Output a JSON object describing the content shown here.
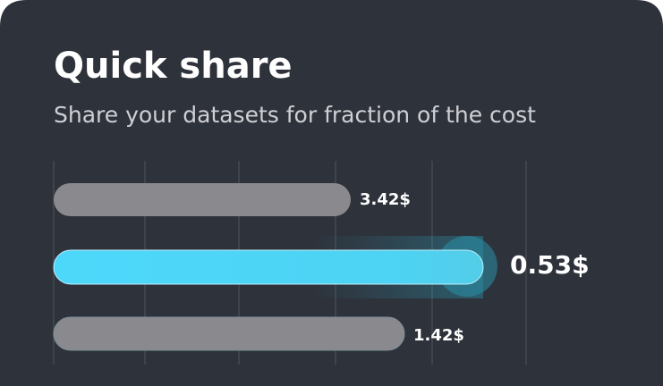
{
  "card": {
    "title": "Quick share",
    "subtitle": "Share your datasets for fraction of the cost",
    "items": [
      {
        "label": "3.42$"
      },
      {
        "label": "0.53$"
      },
      {
        "label": "1.42$"
      }
    ]
  }
}
